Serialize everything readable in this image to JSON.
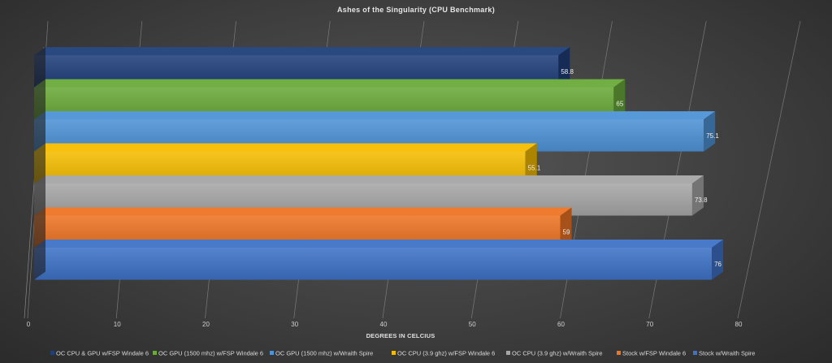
{
  "chart_data": {
    "type": "bar",
    "orientation": "horizontal",
    "style": "3d",
    "title": "Ashes of the Singularity  (CPU Benchmark)",
    "xlabel": "DEGREES IN CELCIUS",
    "ylabel": "",
    "xlim": [
      0,
      80
    ],
    "xticks": [
      0,
      10,
      20,
      30,
      40,
      50,
      60,
      70,
      80
    ],
    "grid": true,
    "legend_position": "bottom",
    "series": [
      {
        "name": "OC CPU & GPU w/FSP Windale 6",
        "value": 58.8,
        "color": "#1f3f7a"
      },
      {
        "name": "OC GPU (1500 mhz) w/FSP Windale 6",
        "value": 65,
        "color": "#6aaa3a"
      },
      {
        "name": "OC GPU (1500 mhz) w/Wraith Spire",
        "value": 75.1,
        "color": "#4e93d6"
      },
      {
        "name": "OC CPU (3.9 ghz) w/FSP Windale 6",
        "value": 55.1,
        "color": "#f5bd00"
      },
      {
        "name": "OC CPU (3.9 ghz) w/Wraith Spire",
        "value": 73.8,
        "color": "#a6a6a6"
      },
      {
        "name": "Stock w/FSP Windale 6",
        "value": 59,
        "color": "#ed7424"
      },
      {
        "name": "Stock w/Wraith Spire",
        "value": 76,
        "color": "#3f72c6"
      }
    ]
  }
}
